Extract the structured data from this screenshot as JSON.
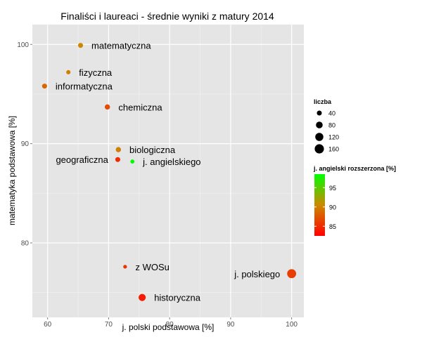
{
  "chart_data": {
    "type": "scatter",
    "title": "Finaliści i laureaci - średnie wyniki z matury 2014",
    "xlabel": "j. polski podstawowa [%]",
    "ylabel": "matematyka podstawowa [%]",
    "xlim": [
      57.5,
      102
    ],
    "ylim": [
      72.5,
      102
    ],
    "x_ticks": [
      60,
      70,
      80,
      90,
      100
    ],
    "y_ticks": [
      80,
      90,
      100
    ],
    "grid": true,
    "size_legend": {
      "title": "liczba",
      "values": [
        40,
        80,
        120,
        160
      ]
    },
    "color_legend": {
      "title": "j. angielski rozszerzona [%]",
      "ticks": [
        85,
        90,
        95
      ],
      "range": [
        82.5,
        98.5
      ],
      "low_color": "#ff0000",
      "mid_color": "#cc8800",
      "high_color": "#00ff00"
    },
    "points": [
      {
        "label": "matematyczna",
        "x": 65.4,
        "y": 99.9,
        "count": 40,
        "color_value": 90.5,
        "label_side": "right"
      },
      {
        "label": "fizyczna",
        "x": 63.4,
        "y": 97.2,
        "count": 28,
        "color_value": 90.0,
        "label_side": "right"
      },
      {
        "label": "informatyczna",
        "x": 59.5,
        "y": 95.8,
        "count": 40,
        "color_value": 88.5,
        "label_side": "right"
      },
      {
        "label": "chemiczna",
        "x": 69.8,
        "y": 93.7,
        "count": 45,
        "color_value": 87.0,
        "label_side": "right"
      },
      {
        "label": "biologiczna",
        "x": 71.6,
        "y": 89.4,
        "count": 45,
        "color_value": 90.0,
        "label_side": "right"
      },
      {
        "label": "geograficzna",
        "x": 71.5,
        "y": 88.4,
        "count": 40,
        "color_value": 85.0,
        "label_side": "left"
      },
      {
        "label": "j. angielskiego",
        "x": 73.9,
        "y": 88.2,
        "count": 25,
        "color_value": 98.5,
        "label_side": "right"
      },
      {
        "label": "z WOSu",
        "x": 72.7,
        "y": 77.6,
        "count": 20,
        "color_value": 85.5,
        "label_side": "right"
      },
      {
        "label": "j. polskiego",
        "x": 100.0,
        "y": 76.9,
        "count": 150,
        "color_value": 86.0,
        "label_side": "left"
      },
      {
        "label": "historyczna",
        "x": 75.5,
        "y": 74.5,
        "count": 90,
        "color_value": 84.0,
        "label_side": "right"
      }
    ]
  }
}
